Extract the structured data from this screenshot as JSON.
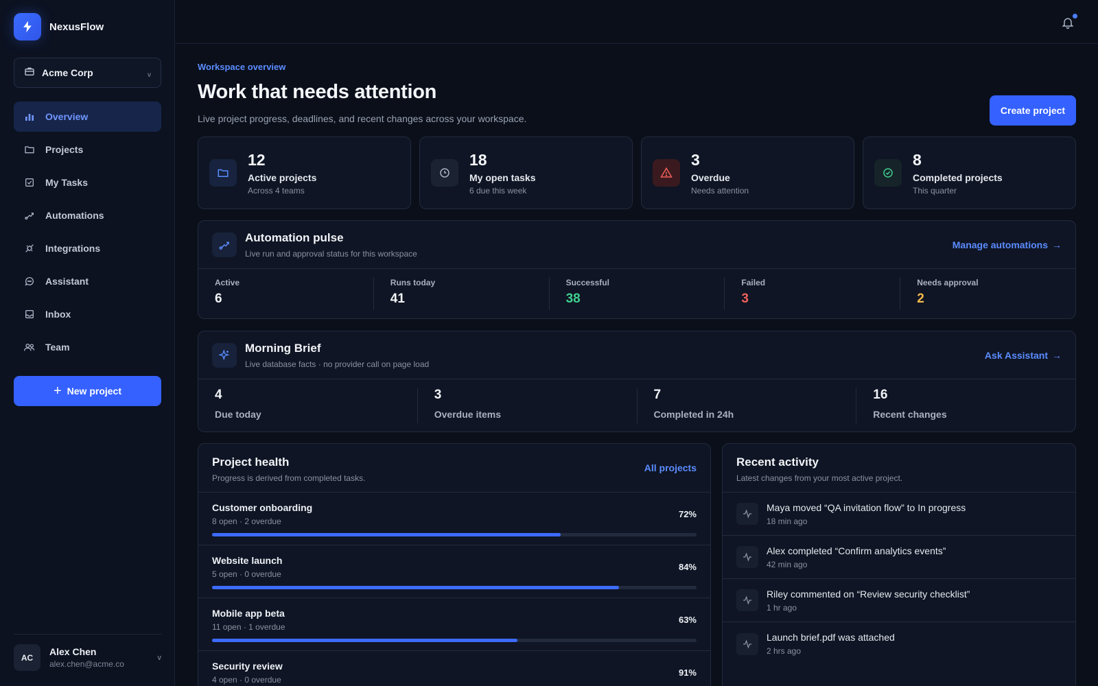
{
  "brand": {
    "name": "NexusFlow"
  },
  "org": {
    "name": "Acme Corp"
  },
  "nav": [
    {
      "label": "Overview",
      "icon": "bar-chart-icon",
      "active": true
    },
    {
      "label": "Projects",
      "icon": "folder-icon"
    },
    {
      "label": "My Tasks",
      "icon": "checkbox-icon"
    },
    {
      "label": "Automations",
      "icon": "workflow-icon"
    },
    {
      "label": "Integrations",
      "icon": "plug-icon"
    },
    {
      "label": "Assistant",
      "icon": "chat-icon"
    },
    {
      "label": "Inbox",
      "icon": "inbox-icon"
    },
    {
      "label": "Team",
      "icon": "users-icon"
    }
  ],
  "new_project_label": "New project",
  "user": {
    "initials": "AC",
    "name": "Alex Chen",
    "email": "alex.chen@acme.co"
  },
  "header": {
    "eyebrow": "Workspace overview",
    "title": "Work that needs attention",
    "subtitle": "Live project progress, deadlines, and recent changes across your workspace.",
    "create_label": "Create project"
  },
  "stats": [
    {
      "value": "12",
      "label": "Active projects",
      "sub": "Across 4 teams",
      "icon": "folder-icon",
      "color": "#5b8cff"
    },
    {
      "value": "18",
      "label": "My open tasks",
      "sub": "6 due this week",
      "icon": "clock-icon",
      "color": "#aab3c5"
    },
    {
      "value": "3",
      "label": "Overdue",
      "sub": "Needs attention",
      "icon": "warning-icon",
      "color": "#f2605a"
    },
    {
      "value": "8",
      "label": "Completed projects",
      "sub": "This quarter",
      "icon": "check-circle-icon",
      "color": "#3fcf8e"
    }
  ],
  "automation": {
    "title": "Automation pulse",
    "desc": "Live run and approval status for this workspace",
    "link": "Manage automations",
    "metrics": [
      {
        "label": "Active",
        "value": "6",
        "color": "#f2f4f8"
      },
      {
        "label": "Runs today",
        "value": "41",
        "color": "#f2f4f8"
      },
      {
        "label": "Successful",
        "value": "38",
        "color": "#3fcf8e"
      },
      {
        "label": "Failed",
        "value": "3",
        "color": "#f2605a"
      },
      {
        "label": "Needs approval",
        "value": "2",
        "color": "#f5b94d"
      }
    ]
  },
  "brief": {
    "title": "Morning Brief",
    "desc": "Live database facts · no provider call on page load",
    "link": "Ask Assistant",
    "metrics": [
      {
        "value": "4",
        "label": "Due today"
      },
      {
        "value": "3",
        "label": "Overdue items"
      },
      {
        "value": "7",
        "label": "Completed in 24h"
      },
      {
        "value": "16",
        "label": "Recent changes"
      }
    ]
  },
  "health": {
    "title": "Project health",
    "desc": "Progress is derived from completed tasks.",
    "link": "All projects",
    "projects": [
      {
        "name": "Customer onboarding",
        "meta": "8 open · 2 overdue",
        "pct": "72%",
        "progress": 0.72
      },
      {
        "name": "Website launch",
        "meta": "5 open · 0 overdue",
        "pct": "84%",
        "progress": 0.84
      },
      {
        "name": "Mobile app beta",
        "meta": "11 open · 1 overdue",
        "pct": "63%",
        "progress": 0.63
      },
      {
        "name": "Security review",
        "meta": "4 open · 0 overdue",
        "pct": "91%",
        "progress": 0.91
      }
    ]
  },
  "activity": {
    "title": "Recent activity",
    "desc": "Latest changes from your most active project.",
    "items": [
      {
        "text": "Maya moved “QA invitation flow” to In progress",
        "time": "18 min ago"
      },
      {
        "text": "Alex completed “Confirm analytics events”",
        "time": "42 min ago"
      },
      {
        "text": "Riley commented on “Review security checklist”",
        "time": "1 hr ago"
      },
      {
        "text": "Launch brief.pdf was attached",
        "time": "2 hrs ago"
      }
    ]
  }
}
